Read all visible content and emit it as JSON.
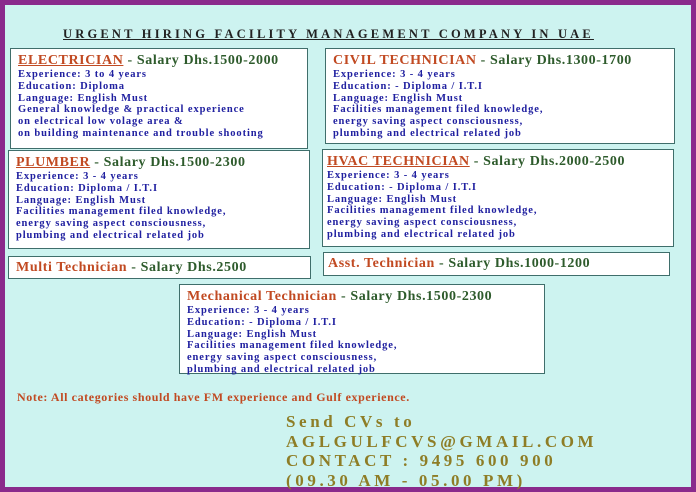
{
  "title": "URGENT HIRING FACILITY MANAGEMENT COMPANY IN UAE",
  "jobs": {
    "electrician": {
      "role": "ELECTRICIAN",
      "salary": " -  Salary Dhs.1500-2000",
      "lines": [
        "Experience: 3 to 4 years",
        "Education: Diploma",
        "Language: English Must",
        "General knowledge & practical experience",
        "on electrical low volage area &",
        "on building maintenance and trouble shooting"
      ]
    },
    "civil": {
      "role": "CIVIL TECHNICIAN",
      "salary": " - Salary Dhs.1300-1700",
      "lines": [
        "Experience: 3 - 4 years",
        "Education: - Diploma / I.T.I",
        "Language: English Must",
        "Facilities management filed knowledge,",
        "energy saving aspect consciousness,",
        "plumbing and electrical related job"
      ]
    },
    "plumber": {
      "role": "PLUMBER",
      "salary": " - Salary Dhs.1500-2300",
      "lines": [
        "Experience: 3 - 4 years",
        "Education: Diploma / I.T.I",
        "Language: English Must",
        "Facilities management filed knowledge,",
        "energy saving aspect consciousness,",
        "plumbing and electrical related job"
      ]
    },
    "hvac": {
      "role": "HVAC TECHNICIAN",
      "salary": " - Salary Dhs.2000-2500",
      "lines": [
        "Experience: 3 - 4 years",
        "Education: - Diploma / I.T.I",
        "Language: English Must",
        "Facilities management filed knowledge,",
        "energy saving aspect consciousness,",
        "plumbing and electrical related job"
      ]
    },
    "multi": {
      "role": "Multi Technician",
      "salary": " - Salary Dhs.2500"
    },
    "asst": {
      "role": "Asst. Technician",
      "salary": " - Salary Dhs.1000-1200"
    },
    "mechanical": {
      "role": "Mechanical Technician",
      "salary": " - Salary Dhs.1500-2300",
      "lines": [
        "Experience: 3 - 4 years",
        "Education: - Diploma / I.T.I",
        "Language: English Must",
        "Facilities management filed knowledge,",
        "energy saving aspect consciousness,",
        "plumbing and electrical related job"
      ]
    }
  },
  "note": "Note: All categories should have FM experience and Gulf experience.",
  "contact": {
    "send": "Send CVs to",
    "email": "AGLGULFCVS@GMAIL.COM",
    "phone": "CONTACT : 9495 600 900",
    "hours": "(09.30 AM - 05.00 PM)"
  },
  "colors": {
    "border": "#8a2a8c",
    "background": "#cdf3f0",
    "role": "#c14a22",
    "salary": "#2e5b2c",
    "body": "#2020a0",
    "contact": "#8e7d26"
  }
}
